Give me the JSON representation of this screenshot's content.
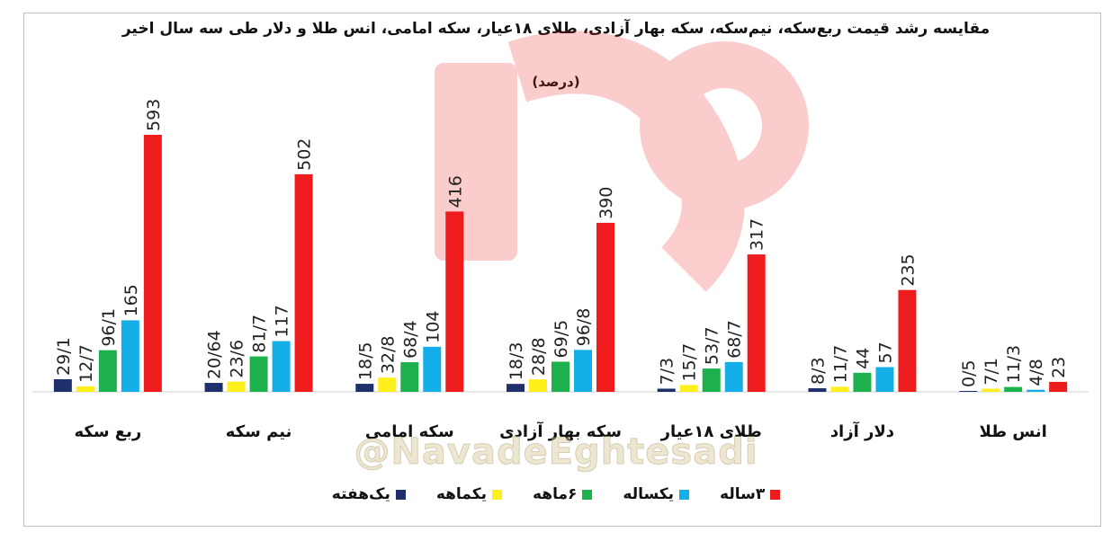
{
  "chart_data": {
    "type": "bar",
    "title": "مقایسه رشد قیمت ربع‌سکه، نیم‌سکه، سکه بهار آزادی، طلای ۱۸عیار، سکه امامی، انس طلا و دلار طی سه سال اخیر",
    "subtitle": "(درصد)",
    "categories": [
      "ربع سکه",
      "نیم سکه",
      "سکه امامی",
      "سکه بهار آزادی",
      "طلای ۱۸عیار",
      "دلار آزاد",
      "انس طلا"
    ],
    "series": [
      {
        "name": "یک‌هفته",
        "color": "#1f2f6b",
        "values": [
          29.1,
          20.64,
          18.5,
          18.3,
          7.3,
          8.3,
          0.5
        ],
        "labels": [
          "29/1",
          "20/64",
          "18/5",
          "18/3",
          "7/3",
          "8/3",
          "0/5"
        ]
      },
      {
        "name": "یکماهه",
        "color": "#ffef1a",
        "values": [
          12.7,
          23.6,
          32.8,
          28.8,
          15.7,
          11.7,
          7.1
        ],
        "labels": [
          "12/7",
          "23/6",
          "32/8",
          "28/8",
          "15/7",
          "11/7",
          "7/1"
        ]
      },
      {
        "name": "۶ماهه",
        "color": "#1db14e",
        "values": [
          96.1,
          81.7,
          68.4,
          69.5,
          53.7,
          44,
          11.3
        ],
        "labels": [
          "96/1",
          "81/7",
          "68/4",
          "69/5",
          "53/7",
          "44",
          "11/3"
        ]
      },
      {
        "name": "یکساله",
        "color": "#14aee8",
        "values": [
          165,
          117,
          104,
          96.8,
          68.7,
          57,
          4.8
        ],
        "labels": [
          "165",
          "117",
          "104",
          "96/8",
          "68/7",
          "57",
          "4/8"
        ]
      },
      {
        "name": "۳ساله",
        "color": "#ee1c1c",
        "values": [
          593,
          502,
          416,
          390,
          317,
          235,
          23
        ],
        "labels": [
          "593",
          "502",
          "416",
          "390",
          "317",
          "235",
          "23"
        ]
      }
    ],
    "ylim": [
      0,
      600
    ],
    "grid": false,
    "legend": "bottom"
  },
  "watermark": {
    "handle": "@NavadeEghtesadi"
  }
}
